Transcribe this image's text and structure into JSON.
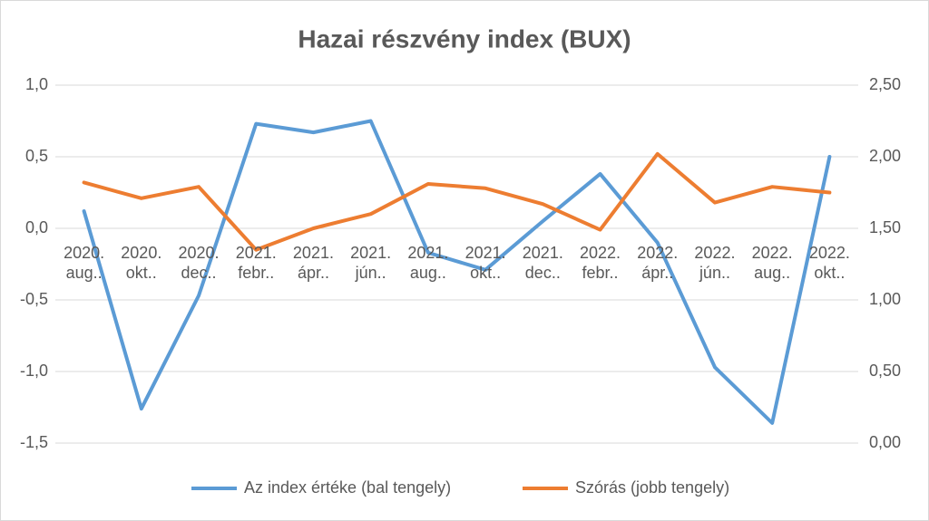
{
  "chart_data": {
    "type": "line",
    "title": "Hazai részvény index (BUX)",
    "categories": [
      "2020. aug..",
      "2020. okt..",
      "2020. dec..",
      "2021. febr..",
      "2021. ápr..",
      "2021. jún..",
      "2021. aug..",
      "2021. okt..",
      "2021. dec..",
      "2022. febr..",
      "2022. ápr..",
      "2022. jún..",
      "2022. aug..",
      "2022. okt.."
    ],
    "series": [
      {
        "name": "Az index értéke (bal tengely)",
        "color": "#5b9bd5",
        "values": [
          0.12,
          -1.26,
          -0.47,
          0.73,
          0.67,
          0.75,
          -0.17,
          -0.29,
          0.05,
          0.38,
          -0.1,
          -0.97,
          -1.36,
          0.5
        ]
      },
      {
        "name": "Szórás (jobb tengely)",
        "color": "#ed7d31",
        "axis": "y2",
        "values": [
          1.82,
          1.71,
          1.79,
          1.35,
          1.5,
          1.6,
          1.81,
          1.78,
          1.67,
          1.49,
          2.02,
          1.68,
          1.79,
          1.75
        ]
      }
    ],
    "ylim": [
      -1.5,
      1.0
    ],
    "yticks": [
      {
        "value": 1.0,
        "label": "1,0"
      },
      {
        "value": 0.5,
        "label": "0,5"
      },
      {
        "value": 0,
        "label": "0,0"
      },
      {
        "value": -0.5,
        "label": "-0,5"
      },
      {
        "value": -1.0,
        "label": "-1,0"
      },
      {
        "value": -1.5,
        "label": "-1,5"
      }
    ],
    "y2lim": [
      0,
      2.5
    ],
    "y2ticks": [
      {
        "value": 2.5,
        "label": "2,50"
      },
      {
        "value": 2.0,
        "label": "2,00"
      },
      {
        "value": 1.5,
        "label": "1,50"
      },
      {
        "value": 1.0,
        "label": "1,00"
      },
      {
        "value": 0.5,
        "label": "0,50"
      },
      {
        "value": 0,
        "label": "0,00"
      }
    ],
    "grid": true,
    "legend": "bottom"
  }
}
